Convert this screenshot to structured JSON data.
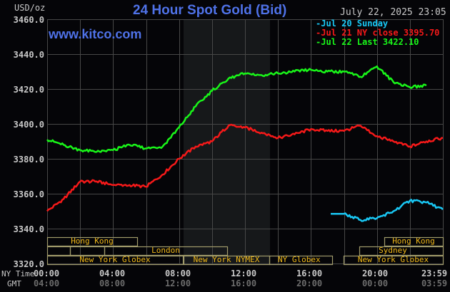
{
  "header": {
    "title": "24 Hour Spot Gold (Bid)",
    "datetime": "July 22, 2025 23:05",
    "unit": "USD/oz",
    "brand": "www.kitco.com"
  },
  "legend": [
    {
      "label": "Jul 20 Sunday",
      "color": "#19c8f5"
    },
    {
      "label": "Jul 21 NY close 3395.70",
      "color": "#f51919"
    },
    {
      "label": "Jul 22 Last 3422.10",
      "color": "#19f519"
    }
  ],
  "axis": {
    "y_ticks": [
      "3460.0",
      "3440.0",
      "3420.0",
      "3400.0",
      "3380.0",
      "3360.0",
      "3340.0",
      "3320.0"
    ],
    "x_label_ny": "NY Time",
    "x_label_gmt": "GMT",
    "x_ticks_ny": [
      "00:00",
      "04:00",
      "08:00",
      "12:00",
      "16:00",
      "20:00",
      "23:59"
    ],
    "x_ticks_gmt": [
      "04:00",
      "08:00",
      "12:00",
      "16:00",
      "20:00",
      "00:00",
      "03:59"
    ]
  },
  "sessions": {
    "row1": [
      {
        "label": "Hong Kong"
      },
      {
        "label": "Hong Kong"
      }
    ],
    "row2": [
      {
        "label": "London"
      },
      {
        "label": "Sydney"
      }
    ],
    "row3": [
      {
        "label": "New York Globex"
      },
      {
        "label": "New York NYMEX"
      },
      {
        "label": "NY Globex"
      },
      {
        "label": "New York Globex"
      }
    ]
  },
  "chart_data": {
    "type": "line",
    "title": "24 Hour Spot Gold (Bid)",
    "xlabel": "NY Time / GMT",
    "ylabel": "USD/oz",
    "ylim": [
      3320,
      3460
    ],
    "xlim": [
      "00:00",
      "23:59"
    ],
    "grid": true,
    "legend_position": "top-right",
    "x_hours": [
      0,
      1,
      2,
      3,
      4,
      5,
      6,
      7,
      8,
      9,
      10,
      11,
      12,
      13,
      14,
      15,
      16,
      17,
      18,
      19,
      20,
      21,
      22,
      23,
      24
    ],
    "series": [
      {
        "name": "Jul 20 Sunday",
        "color": "#19c8f5",
        "x_start_hour": 18,
        "values": [
          null,
          null,
          null,
          null,
          null,
          null,
          null,
          null,
          null,
          null,
          null,
          null,
          null,
          null,
          null,
          null,
          null,
          null,
          3348.5,
          3345,
          3346,
          3350,
          3356,
          3355,
          3351
        ]
      },
      {
        "name": "Jul 21 NY close 3395.70",
        "color": "#f51919",
        "values": [
          3350,
          3357,
          3367,
          3367,
          3365,
          3365,
          3364,
          3371,
          3380,
          3387,
          3390,
          3399,
          3398,
          3395,
          3392,
          3394,
          3397,
          3396,
          3396,
          3399,
          3393,
          3390,
          3387,
          3390,
          3392
        ]
      },
      {
        "name": "Jul 22 Last 3422.10",
        "color": "#19f519",
        "values": [
          3391,
          3388,
          3385,
          3384,
          3385,
          3388,
          3386,
          3387,
          3398,
          3410,
          3419,
          3426,
          3429,
          3428,
          3429,
          3430,
          3431,
          3430,
          3430,
          3427,
          3433,
          3424,
          3421,
          3422,
          null
        ]
      }
    ],
    "shaded_region": [
      "08:20",
      "13:30"
    ]
  }
}
